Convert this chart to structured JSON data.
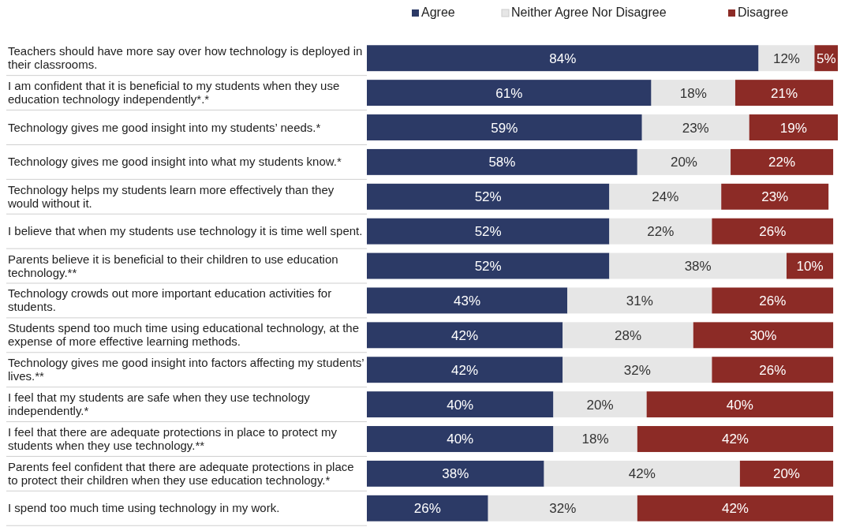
{
  "chart_data": {
    "type": "bar",
    "orientation": "horizontal",
    "stacked": true,
    "legend": "top",
    "tick_labels": "y",
    "categories": [
      "Teachers should have more say over how technology is deployed in their classrooms.",
      "I am confident that it is beneficial to my students when they use education technology independently*.*",
      "Technology gives me good insight into my students’ needs.*",
      "Technology gives me good insight into what my students know.*",
      "Technology helps my students learn more effectively than they would without it.",
      "I believe that when my students use technology it is time well spent.",
      "Parents believe it is beneficial to their children to use education technology.**",
      "Technology crowds out more important education activities for students.",
      "Students spend too much time using educational technology, at the expense of more effective learning methods.",
      "Technology gives me good insight into factors affecting my students’ lives.**",
      "I feel that my students are safe when they use technology independently.*",
      "I feel that there are adequate protections in place to protect my students when they use technology.**",
      "Parents feel confident that there are adequate protections in place to protect their children when they use education technology.*",
      "I spend too much time using technology in my work."
    ],
    "series": [
      {
        "name": "Agree",
        "color": "#2c3a66",
        "values": [
          84,
          61,
          59,
          58,
          52,
          52,
          52,
          43,
          42,
          42,
          40,
          40,
          38,
          26
        ],
        "value_labels": [
          "84%",
          "61%",
          "59%",
          "58%",
          "52%",
          "52%",
          "52%",
          "43%",
          "42%",
          "42%",
          "40%",
          "40%",
          "38%",
          "26%"
        ]
      },
      {
        "name": "Neither Agree Nor Disagree",
        "color": "#e6e6e6",
        "values": [
          12,
          18,
          23,
          20,
          24,
          22,
          38,
          31,
          28,
          32,
          20,
          18,
          42,
          32
        ],
        "value_labels": [
          "12%",
          "18%",
          "23%",
          "20%",
          "24%",
          "22%",
          "38%",
          "31%",
          "28%",
          "32%",
          "20%",
          "18%",
          "42%",
          "32%"
        ]
      },
      {
        "name": "Disagree",
        "color": "#8c2b26",
        "values": [
          5,
          21,
          19,
          22,
          23,
          26,
          10,
          26,
          30,
          26,
          40,
          42,
          20,
          42
        ],
        "value_labels": [
          "5%",
          "21%",
          "19%",
          "22%",
          "23%",
          "26%",
          "10%",
          "26%",
          "30%",
          "26%",
          "40%",
          "42%",
          "20%",
          "42%"
        ]
      }
    ]
  }
}
